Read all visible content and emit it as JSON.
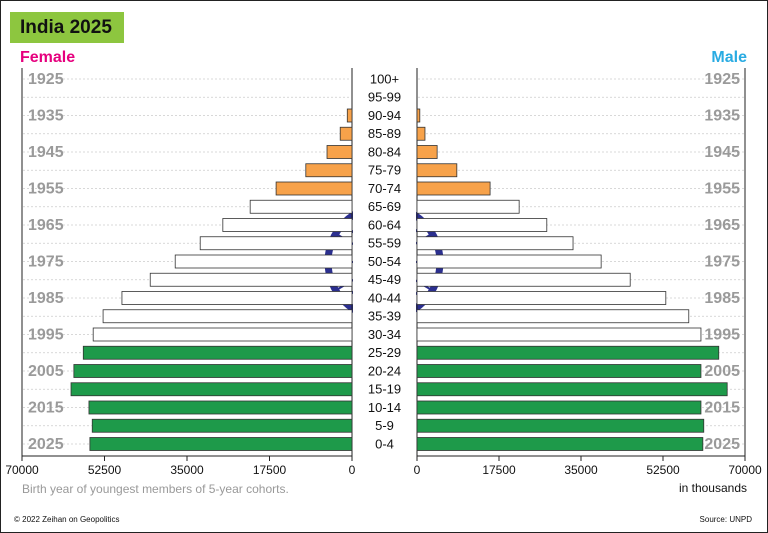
{
  "chart_data": {
    "type": "pyramid",
    "title": "India 2025",
    "categories": [
      "100+",
      "95-99",
      "90-94",
      "85-89",
      "80-84",
      "75-79",
      "70-74",
      "65-69",
      "60-64",
      "55-59",
      "50-54",
      "45-49",
      "40-44",
      "35-39",
      "30-34",
      "25-29",
      "20-24",
      "15-19",
      "10-14",
      "5-9",
      "0-4"
    ],
    "birth_years": [
      1925,
      null,
      1935,
      null,
      1945,
      null,
      1955,
      null,
      1965,
      null,
      1975,
      null,
      1985,
      null,
      1995,
      null,
      2005,
      null,
      2015,
      null,
      2025
    ],
    "bar_colors": [
      "#f7a24a",
      "#f7a24a",
      "#f7a24a",
      "#f7a24a",
      "#f7a24a",
      "#f7a24a",
      "#f7a24a",
      "#ffffff",
      "#ffffff",
      "#ffffff",
      "#ffffff",
      "#ffffff",
      "#ffffff",
      "#ffffff",
      "#ffffff",
      "#1e9a4a",
      "#1e9a4a",
      "#1e9a4a",
      "#1e9a4a",
      "#1e9a4a",
      "#1e9a4a"
    ],
    "series": [
      {
        "name": "Female",
        "color": "#e6007e",
        "side": "left",
        "values": [
          0,
          0,
          1000,
          2500,
          5300,
          9800,
          16100,
          21600,
          27400,
          32200,
          37500,
          42800,
          48800,
          52800,
          54900,
          57000,
          59000,
          59600,
          55800,
          55100,
          55600
        ]
      },
      {
        "name": "Male",
        "color": "#29abe2",
        "side": "right",
        "values": [
          0,
          0,
          600,
          1700,
          4300,
          8500,
          15600,
          21800,
          27700,
          33300,
          39300,
          45500,
          53100,
          58000,
          60600,
          64400,
          60600,
          66200,
          60600,
          61200,
          61000
        ]
      }
    ],
    "xlim": [
      0,
      70000
    ],
    "xticks": [
      0,
      17500,
      35000,
      52500,
      70000
    ],
    "note": "Birth year of youngest members of 5-year cohorts.",
    "unit_label": "in thousands"
  },
  "footer": {
    "credit": "© 2022 Zeihan on Geopolitics",
    "source": "Source: UNPD"
  }
}
